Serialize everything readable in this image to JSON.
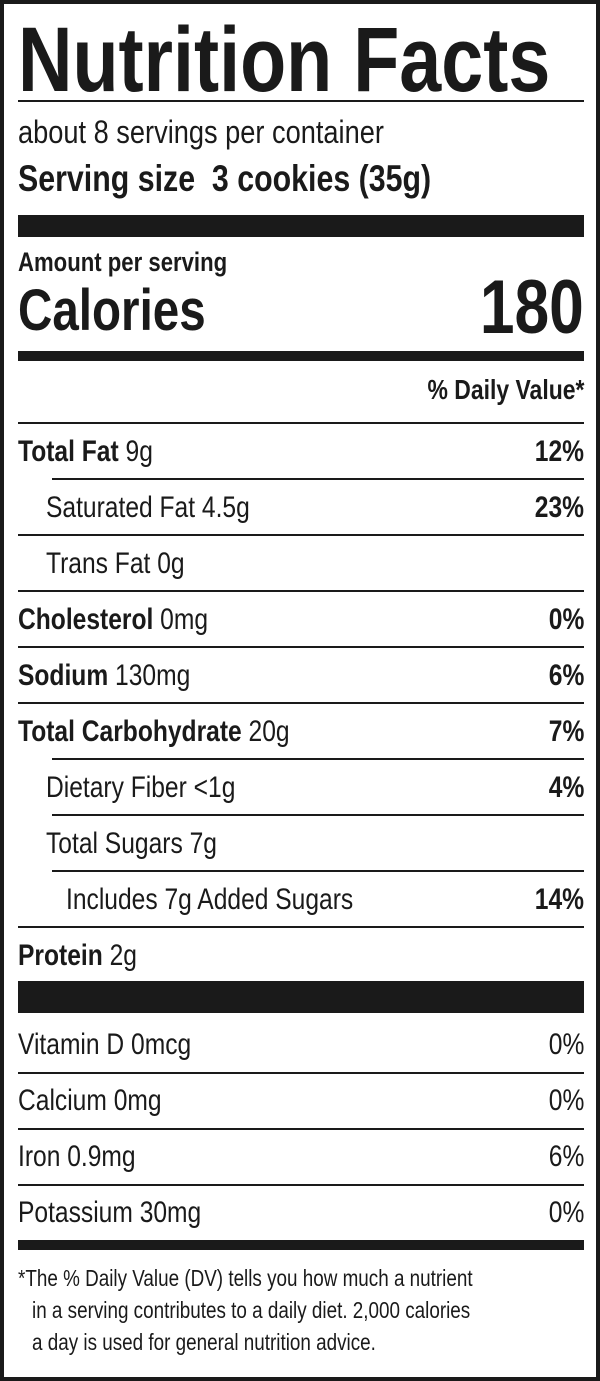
{
  "title": "Nutrition Facts",
  "servings_per_container": "about 8 servings per container",
  "serving_size_label": "Serving size",
  "serving_size_value": "3 cookies (35g)",
  "amount_per_serving": "Amount per serving",
  "calories_label": "Calories",
  "calories_value": "180",
  "daily_value_header": "% Daily Value*",
  "nutrients": [
    {
      "name": "Total Fat",
      "amount": "9g",
      "dv": "12%",
      "bold": true,
      "indent": 0
    },
    {
      "name": "Saturated Fat",
      "amount": "4.5g",
      "dv": "23%",
      "bold": false,
      "indent": 1
    },
    {
      "name": "Trans Fat",
      "amount": "0g",
      "dv": "",
      "bold": false,
      "indent": 1
    },
    {
      "name": "Cholesterol",
      "amount": "0mg",
      "dv": "0%",
      "bold": true,
      "indent": 0
    },
    {
      "name": "Sodium",
      "amount": "130mg",
      "dv": "6%",
      "bold": true,
      "indent": 0
    },
    {
      "name": "Total Carbohydrate",
      "amount": "20g",
      "dv": "7%",
      "bold": true,
      "indent": 0
    },
    {
      "name": "Dietary Fiber",
      "amount": "<1g",
      "dv": "4%",
      "bold": false,
      "indent": 1
    },
    {
      "name": "Total Sugars",
      "amount": "7g",
      "dv": "",
      "bold": false,
      "indent": 1
    },
    {
      "name": "Includes 7g Added Sugars",
      "amount": "",
      "dv": "14%",
      "bold": false,
      "indent": 2
    },
    {
      "name": "Protein",
      "amount": "2g",
      "dv": "",
      "bold": true,
      "indent": 0
    }
  ],
  "vitamins": [
    {
      "name": "Vitamin D",
      "amount": "0mcg",
      "dv": "0%"
    },
    {
      "name": "Calcium",
      "amount": "0mg",
      "dv": "0%"
    },
    {
      "name": "Iron",
      "amount": "0.9mg",
      "dv": "6%"
    },
    {
      "name": "Potassium",
      "amount": "30mg",
      "dv": "0%"
    }
  ],
  "footnote": [
    "*The % Daily Value (DV) tells you how much a nutrient",
    "in a serving contributes to a daily diet. 2,000 calories",
    "a day is used for general nutrition advice."
  ]
}
